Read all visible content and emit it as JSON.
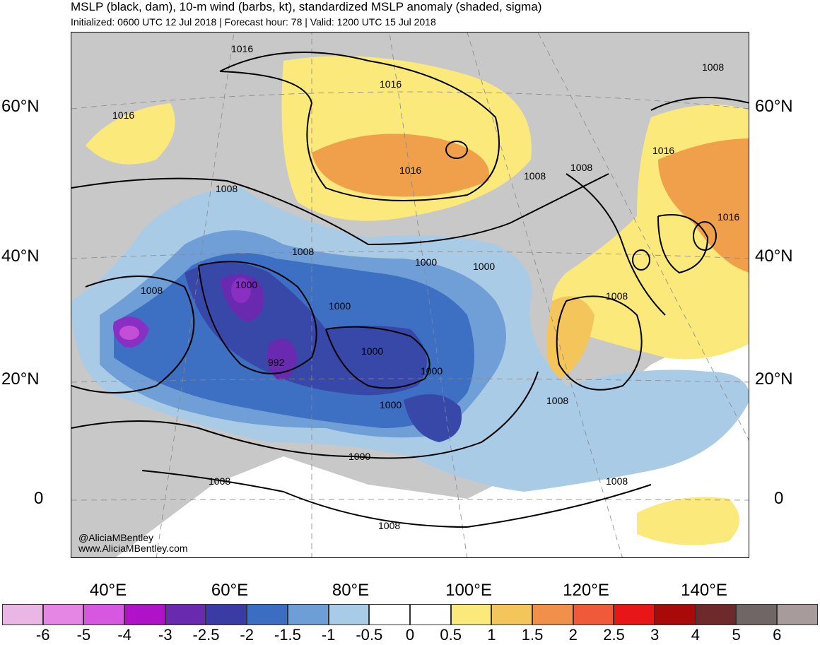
{
  "header": {
    "title": "MSLP (black, dam), 10-m wind (barbs, kt), standardized MSLP anomaly (shaded, sigma)",
    "subtitle": "Initialized: 0600 UTC 12 Jul 2018 | Forecast hour: 78 | Valid: 1200 UTC 15 Jul 2018"
  },
  "map": {
    "lat_labels": [
      "60°N",
      "40°N",
      "20°N",
      "0"
    ],
    "lon_labels": [
      "40°E",
      "60°E",
      "80°E",
      "100°E",
      "120°E",
      "140°E"
    ],
    "contour_labels": [
      "1016",
      "1016",
      "1016",
      "1016",
      "1008",
      "1008",
      "1008",
      "1016",
      "1008",
      "1008",
      "1016",
      "1000",
      "1000",
      "1000",
      "1000",
      "1000",
      "992",
      "1000",
      "1000",
      "1008",
      "1008",
      "1008",
      "1000",
      "1008",
      "1008",
      "1008"
    ],
    "colors": {
      "land_gray": "#c8c8c8",
      "yellow": "#fbe97b",
      "light_orange": "#f4c55b",
      "orange": "#f0a04a",
      "light_blue": "#aacbe6",
      "mid_blue": "#6f9fd6",
      "blue": "#3d6fc3",
      "dark_blue": "#3848a8",
      "indigo": "#5a2ab0",
      "purple": "#8a2fc4",
      "magenta": "#c44fd6"
    }
  },
  "credits": {
    "handle": "@AliciaMBentley",
    "website": "www.AliciaMBentley.com"
  },
  "colorbar": {
    "labels": [
      "-6",
      "-5",
      "-4",
      "-3",
      "-2.5",
      "-2",
      "-1.5",
      "-1",
      "-0.5",
      "0",
      "0.5",
      "1",
      "1.5",
      "2",
      "2.5",
      "3",
      "4",
      "5",
      "6"
    ],
    "colors": [
      "#e9b6e6",
      "#e586e4",
      "#d857e0",
      "#b012c9",
      "#6a2ab0",
      "#3b3ba6",
      "#3b6ec2",
      "#6e9ed6",
      "#a8cbe8",
      "#ffffff",
      "#ffffff",
      "#fbe97b",
      "#f4c55b",
      "#f0904a",
      "#f05a3a",
      "#e81616",
      "#a80a0a",
      "#6e2a2a",
      "#716666",
      "#a89b9b"
    ]
  }
}
